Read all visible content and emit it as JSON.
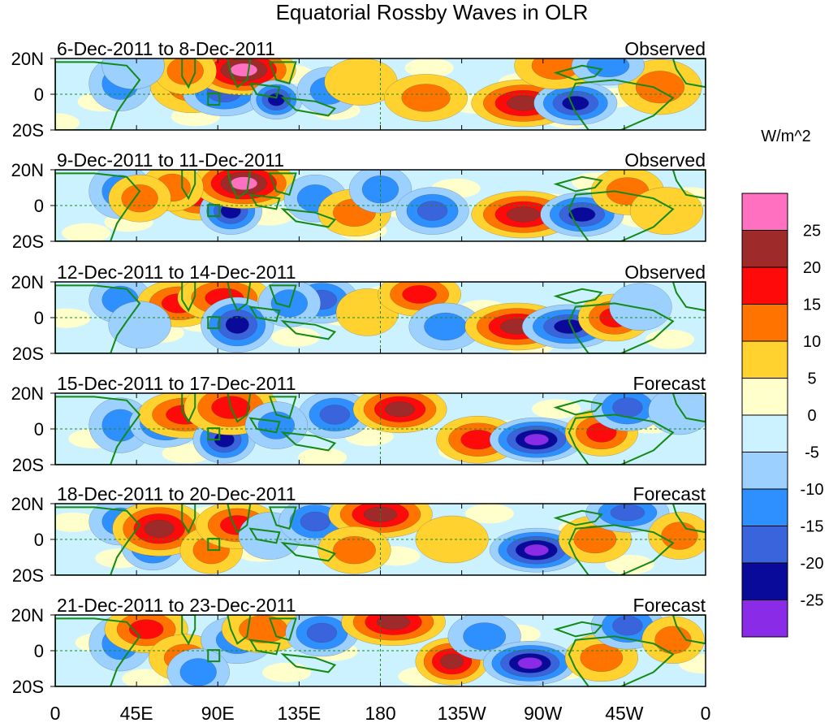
{
  "chart_data": {
    "type": "contour-map",
    "title": "Equatorial Rossby Waves in OLR",
    "colorbar": {
      "units": "W/m^2",
      "levels": [
        25,
        20,
        15,
        10,
        5,
        0,
        -5,
        -10,
        -15,
        -20,
        -25
      ],
      "colors": [
        "#ff70c0",
        "#9e2a2a",
        "#ff0a0a",
        "#ff7400",
        "#ffd230",
        "#ffffcc",
        "#cdf2ff",
        "#9cd0ff",
        "#2e90ff",
        "#3a64dc",
        "#0a0a9a",
        "#8a2be8"
      ]
    },
    "x_ticks": [
      "0",
      "45E",
      "90E",
      "135E",
      "180",
      "135W",
      "90W",
      "45W",
      "0"
    ],
    "y_ticks": [
      "20N",
      "0",
      "20S"
    ],
    "panels": [
      {
        "period": "6-Dec-2011 to 8-Dec-2011",
        "status": "Observed",
        "features": [
          [
            0.1,
            0.3,
            0.03,
            0.35,
            -12
          ],
          [
            0.21,
            0.25,
            0.04,
            0.35,
            12
          ],
          [
            0.26,
            0.05,
            0.04,
            0.3,
            -16
          ],
          [
            0.29,
            0.68,
            0.05,
            0.32,
            27
          ],
          [
            0.34,
            -0.15,
            0.025,
            0.25,
            -22
          ],
          [
            0.2,
            0.65,
            0.03,
            0.3,
            10
          ],
          [
            0.42,
            0.1,
            0.03,
            0.3,
            -12
          ],
          [
            0.47,
            0.35,
            0.035,
            0.3,
            8
          ],
          [
            0.57,
            -0.1,
            0.04,
            0.3,
            10
          ],
          [
            0.72,
            -0.25,
            0.05,
            0.3,
            22
          ],
          [
            0.8,
            -0.25,
            0.04,
            0.28,
            -22
          ],
          [
            0.93,
            0.2,
            0.04,
            0.35,
            10
          ],
          [
            0.77,
            0.8,
            0.04,
            0.3,
            12
          ],
          [
            0.85,
            0.8,
            0.035,
            0.25,
            -12
          ],
          [
            0.12,
            0.8,
            0.03,
            0.3,
            -7
          ]
        ]
      },
      {
        "period": "9-Dec-2011 to 11-Dec-2011",
        "status": "Observed",
        "features": [
          [
            0.1,
            0.4,
            0.03,
            0.35,
            -12
          ],
          [
            0.22,
            0.25,
            0.035,
            0.3,
            15
          ],
          [
            0.27,
            -0.15,
            0.03,
            0.3,
            -20
          ],
          [
            0.29,
            0.62,
            0.05,
            0.32,
            26
          ],
          [
            0.18,
            0.5,
            0.03,
            0.3,
            12
          ],
          [
            0.4,
            0.2,
            0.03,
            0.3,
            -12
          ],
          [
            0.46,
            -0.2,
            0.035,
            0.3,
            10
          ],
          [
            0.5,
            0.45,
            0.03,
            0.3,
            -10
          ],
          [
            0.58,
            -0.15,
            0.035,
            0.3,
            -16
          ],
          [
            0.72,
            -0.25,
            0.05,
            0.3,
            22
          ],
          [
            0.81,
            -0.25,
            0.04,
            0.28,
            -22
          ],
          [
            0.88,
            0.4,
            0.035,
            0.3,
            10
          ],
          [
            0.94,
            -0.15,
            0.035,
            0.3,
            8
          ],
          [
            0.13,
            0.2,
            0.03,
            0.3,
            10
          ]
        ]
      },
      {
        "period": "12-Dec-2011 to 14-Dec-2011",
        "status": "Observed",
        "features": [
          [
            0.1,
            0.5,
            0.03,
            0.3,
            -12
          ],
          [
            0.19,
            0.4,
            0.04,
            0.3,
            15
          ],
          [
            0.26,
            0.55,
            0.045,
            0.3,
            18
          ],
          [
            0.28,
            -0.2,
            0.035,
            0.35,
            -20
          ],
          [
            0.41,
            0.5,
            0.035,
            0.3,
            -18
          ],
          [
            0.48,
            0.15,
            0.03,
            0.3,
            8
          ],
          [
            0.56,
            0.65,
            0.04,
            0.28,
            18
          ],
          [
            0.6,
            -0.25,
            0.035,
            0.3,
            -10
          ],
          [
            0.71,
            -0.25,
            0.05,
            0.3,
            23
          ],
          [
            0.79,
            -0.25,
            0.045,
            0.28,
            -24
          ],
          [
            0.86,
            0.0,
            0.035,
            0.3,
            15
          ],
          [
            0.9,
            0.3,
            0.03,
            0.3,
            -8
          ],
          [
            0.13,
            -0.2,
            0.03,
            0.3,
            -8
          ],
          [
            0.36,
            0.4,
            0.03,
            0.3,
            -12
          ]
        ]
      },
      {
        "period": "15-Dec-2011 to 17-Dec-2011",
        "status": "Forecast",
        "features": [
          [
            0.1,
            0.1,
            0.03,
            0.35,
            -10
          ],
          [
            0.17,
            0.15,
            0.035,
            0.3,
            -18
          ],
          [
            0.2,
            0.4,
            0.045,
            0.3,
            18
          ],
          [
            0.26,
            -0.3,
            0.03,
            0.3,
            -20
          ],
          [
            0.27,
            0.6,
            0.045,
            0.35,
            16
          ],
          [
            0.43,
            0.4,
            0.035,
            0.3,
            -18
          ],
          [
            0.53,
            0.55,
            0.045,
            0.3,
            22
          ],
          [
            0.65,
            -0.3,
            0.04,
            0.3,
            18
          ],
          [
            0.74,
            -0.3,
            0.045,
            0.28,
            -26
          ],
          [
            0.84,
            -0.1,
            0.035,
            0.3,
            15
          ],
          [
            0.88,
            0.6,
            0.035,
            0.3,
            -15
          ],
          [
            0.96,
            0.5,
            0.03,
            0.3,
            -8
          ],
          [
            0.34,
            0.1,
            0.03,
            0.3,
            -10
          ]
        ]
      },
      {
        "period": "18-Dec-2011 to 20-Dec-2011",
        "status": "Forecast",
        "features": [
          [
            0.1,
            0.5,
            0.03,
            0.3,
            -10
          ],
          [
            0.15,
            -0.2,
            0.03,
            0.3,
            -15
          ],
          [
            0.16,
            0.3,
            0.045,
            0.35,
            20
          ],
          [
            0.24,
            -0.3,
            0.03,
            0.3,
            10
          ],
          [
            0.28,
            0.4,
            0.04,
            0.3,
            15
          ],
          [
            0.33,
            0.1,
            0.03,
            0.3,
            -8
          ],
          [
            0.4,
            0.5,
            0.035,
            0.3,
            -15
          ],
          [
            0.5,
            0.7,
            0.05,
            0.3,
            22
          ],
          [
            0.46,
            -0.3,
            0.035,
            0.3,
            12
          ],
          [
            0.61,
            0.0,
            0.035,
            0.3,
            8
          ],
          [
            0.74,
            -0.3,
            0.045,
            0.28,
            -26
          ],
          [
            0.83,
            0.0,
            0.035,
            0.3,
            12
          ],
          [
            0.88,
            0.75,
            0.04,
            0.25,
            -18
          ],
          [
            0.96,
            0.1,
            0.03,
            0.3,
            10
          ]
        ]
      },
      {
        "period": "21-Dec-2011 to 23-Dec-2011",
        "status": "Forecast",
        "features": [
          [
            0.1,
            0.2,
            0.03,
            0.35,
            -12
          ],
          [
            0.14,
            0.6,
            0.04,
            0.3,
            18
          ],
          [
            0.2,
            -0.2,
            0.035,
            0.3,
            12
          ],
          [
            0.28,
            0.3,
            0.035,
            0.3,
            -12
          ],
          [
            0.32,
            0.6,
            0.04,
            0.3,
            12
          ],
          [
            0.41,
            0.5,
            0.035,
            0.3,
            -15
          ],
          [
            0.52,
            0.8,
            0.05,
            0.3,
            22
          ],
          [
            0.61,
            -0.3,
            0.035,
            0.3,
            22
          ],
          [
            0.66,
            0.4,
            0.035,
            0.3,
            -10
          ],
          [
            0.73,
            -0.35,
            0.045,
            0.28,
            -25
          ],
          [
            0.84,
            -0.2,
            0.035,
            0.3,
            12
          ],
          [
            0.88,
            0.7,
            0.035,
            0.3,
            -18
          ],
          [
            0.95,
            0.3,
            0.03,
            0.3,
            10
          ],
          [
            0.22,
            -0.6,
            0.03,
            0.3,
            -10
          ]
        ]
      }
    ]
  }
}
